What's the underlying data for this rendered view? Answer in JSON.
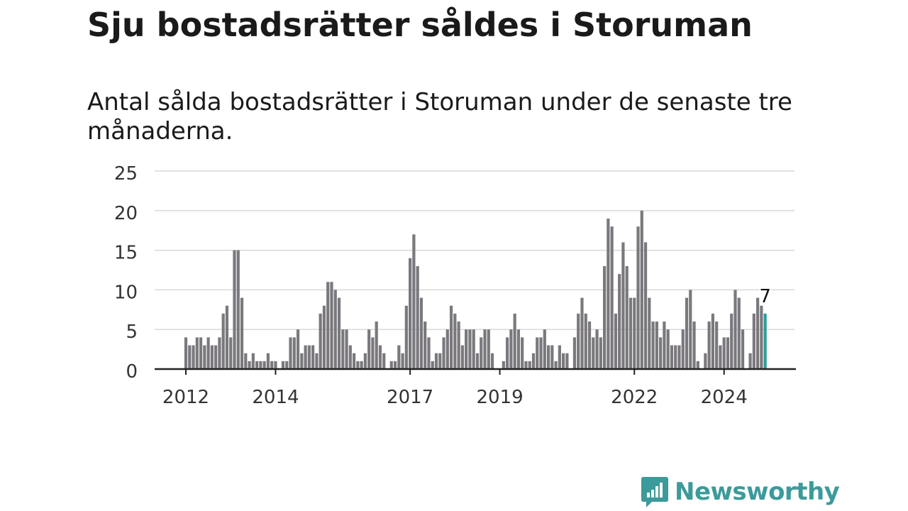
{
  "header": {
    "title": "Sju bostadsrätter såldes i Storuman",
    "subtitle": "Antal sålda bostadsrätter i Storuman under de senaste tre månaderna."
  },
  "brand": {
    "name": "Newsworthy",
    "icon": "newsworthy-logo-icon",
    "color": "#3d9a9b"
  },
  "colors": {
    "bar": "#7a787d",
    "highlight": "#2a9d9a",
    "grid": "#d9d9d9",
    "axis": "#222222"
  },
  "chart_data": {
    "type": "bar",
    "ylim": [
      0,
      25
    ],
    "yticks": [
      0,
      5,
      10,
      15,
      20,
      25
    ],
    "xticks": [
      {
        "label": "2012",
        "index": 0
      },
      {
        "label": "2014",
        "index": 24
      },
      {
        "label": "2017",
        "index": 60
      },
      {
        "label": "2019",
        "index": 84
      },
      {
        "label": "2022",
        "index": 120
      },
      {
        "label": "2024",
        "index": 144
      }
    ],
    "values": [
      4,
      3,
      3,
      4,
      4,
      3,
      4,
      3,
      3,
      4,
      7,
      8,
      4,
      15,
      15,
      9,
      2,
      1,
      2,
      1,
      1,
      1,
      2,
      1,
      1,
      0,
      1,
      1,
      4,
      4,
      5,
      2,
      3,
      3,
      3,
      2,
      7,
      8,
      11,
      11,
      10,
      9,
      5,
      5,
      3,
      2,
      1,
      1,
      2,
      5,
      4,
      6,
      3,
      2,
      0,
      1,
      1,
      3,
      2,
      8,
      14,
      17,
      13,
      9,
      6,
      4,
      1,
      2,
      2,
      4,
      5,
      8,
      7,
      6,
      3,
      5,
      5,
      5,
      2,
      4,
      5,
      5,
      2,
      0,
      0,
      1,
      4,
      5,
      7,
      5,
      4,
      1,
      1,
      2,
      4,
      4,
      5,
      3,
      3,
      1,
      3,
      2,
      2,
      0,
      4,
      7,
      9,
      7,
      6,
      4,
      5,
      4,
      13,
      19,
      18,
      7,
      12,
      16,
      13,
      9,
      9,
      18,
      20,
      16,
      9,
      6,
      6,
      4,
      6,
      5,
      3,
      3,
      3,
      5,
      9,
      10,
      6,
      1,
      0,
      2,
      6,
      7,
      6,
      3,
      4,
      4,
      7,
      10,
      9,
      5,
      0,
      2,
      7,
      9,
      8,
      7
    ],
    "highlight_last": 1,
    "annotation": "7"
  }
}
